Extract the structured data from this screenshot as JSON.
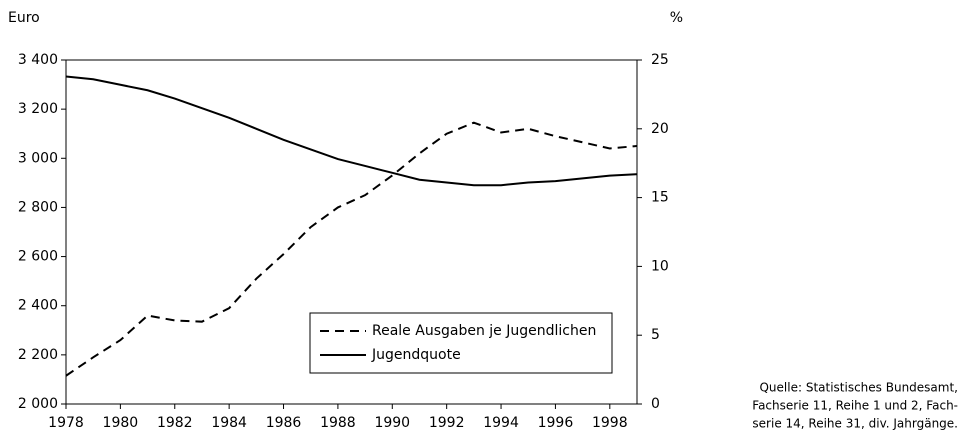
{
  "chart_data": {
    "type": "line",
    "ylabel": "Euro",
    "y2label": "%",
    "x": [
      1978,
      1979,
      1980,
      1981,
      1982,
      1983,
      1984,
      1985,
      1986,
      1987,
      1988,
      1989,
      1990,
      1991,
      1992,
      1993,
      1994,
      1995,
      1996,
      1997,
      1998,
      1999
    ],
    "xlim": [
      1978,
      1999
    ],
    "xticks": [
      1978,
      1980,
      1982,
      1984,
      1986,
      1988,
      1990,
      1992,
      1994,
      1996,
      1998
    ],
    "ylim": [
      2000,
      3400
    ],
    "yticks": [
      {
        "value": 2000,
        "label": "2 000"
      },
      {
        "value": 2200,
        "label": "2 200"
      },
      {
        "value": 2400,
        "label": "2 400"
      },
      {
        "value": 2600,
        "label": "2 600"
      },
      {
        "value": 2800,
        "label": "2 800"
      },
      {
        "value": 3000,
        "label": "3 000"
      },
      {
        "value": 3200,
        "label": "3 200"
      },
      {
        "value": 3400,
        "label": "3 400"
      }
    ],
    "y2lim": [
      0,
      25
    ],
    "y2ticks": [
      0,
      5,
      10,
      15,
      20,
      25
    ],
    "series": [
      {
        "name": "Reale Ausgaben je Jugendlichen",
        "color": "#000000",
        "line_style": "dashed",
        "values": [
          2115,
          2190,
          2260,
          2360,
          2340,
          2335,
          2390,
          2510,
          2610,
          2720,
          2800,
          2850,
          2930,
          3020,
          3100,
          3145,
          3105,
          3120,
          3090,
          3065,
          3040,
          3050
        ]
      },
      {
        "name": "Jugendquote",
        "color": "#000000",
        "line_style": "solid",
        "axis": "y2",
        "values": [
          23.8,
          23.6,
          23.2,
          22.8,
          22.2,
          21.5,
          20.8,
          20.0,
          19.2,
          18.5,
          17.8,
          17.3,
          16.8,
          16.3,
          16.1,
          15.9,
          15.9,
          16.1,
          16.2,
          16.4,
          16.6,
          16.7
        ]
      }
    ],
    "source": [
      "Quelle: Statistisches Bundesamt,",
      "Fachserie 11, Reihe 1 und 2, Fach-",
      "serie 14, Reihe 31, div. Jahrgänge."
    ]
  }
}
